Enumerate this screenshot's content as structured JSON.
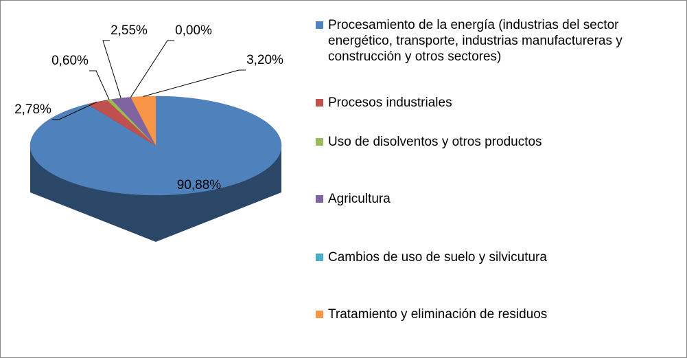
{
  "chart_data": {
    "type": "pie",
    "categories": [
      "Procesamiento de la energía (industrias del sector energético, transporte, industrias manufactureras y construcción y otros sectores)",
      "Procesos industriales",
      "Uso de disolventos y otros productos",
      "Agricultura",
      "Cambios de uso de suelo y silvicutura",
      "Tratamiento y eliminación de residuos"
    ],
    "values": [
      90.88,
      2.78,
      0.6,
      2.55,
      0.0,
      3.2
    ],
    "value_labels": [
      "90,88%",
      "2,78%",
      "0,60%",
      "2,55%",
      "0,00%",
      "3,20%"
    ],
    "colors": [
      "#4f81bd",
      "#c0504d",
      "#9bbb59",
      "#8064a2",
      "#4bacc6",
      "#f79646"
    ],
    "legend": "right"
  }
}
